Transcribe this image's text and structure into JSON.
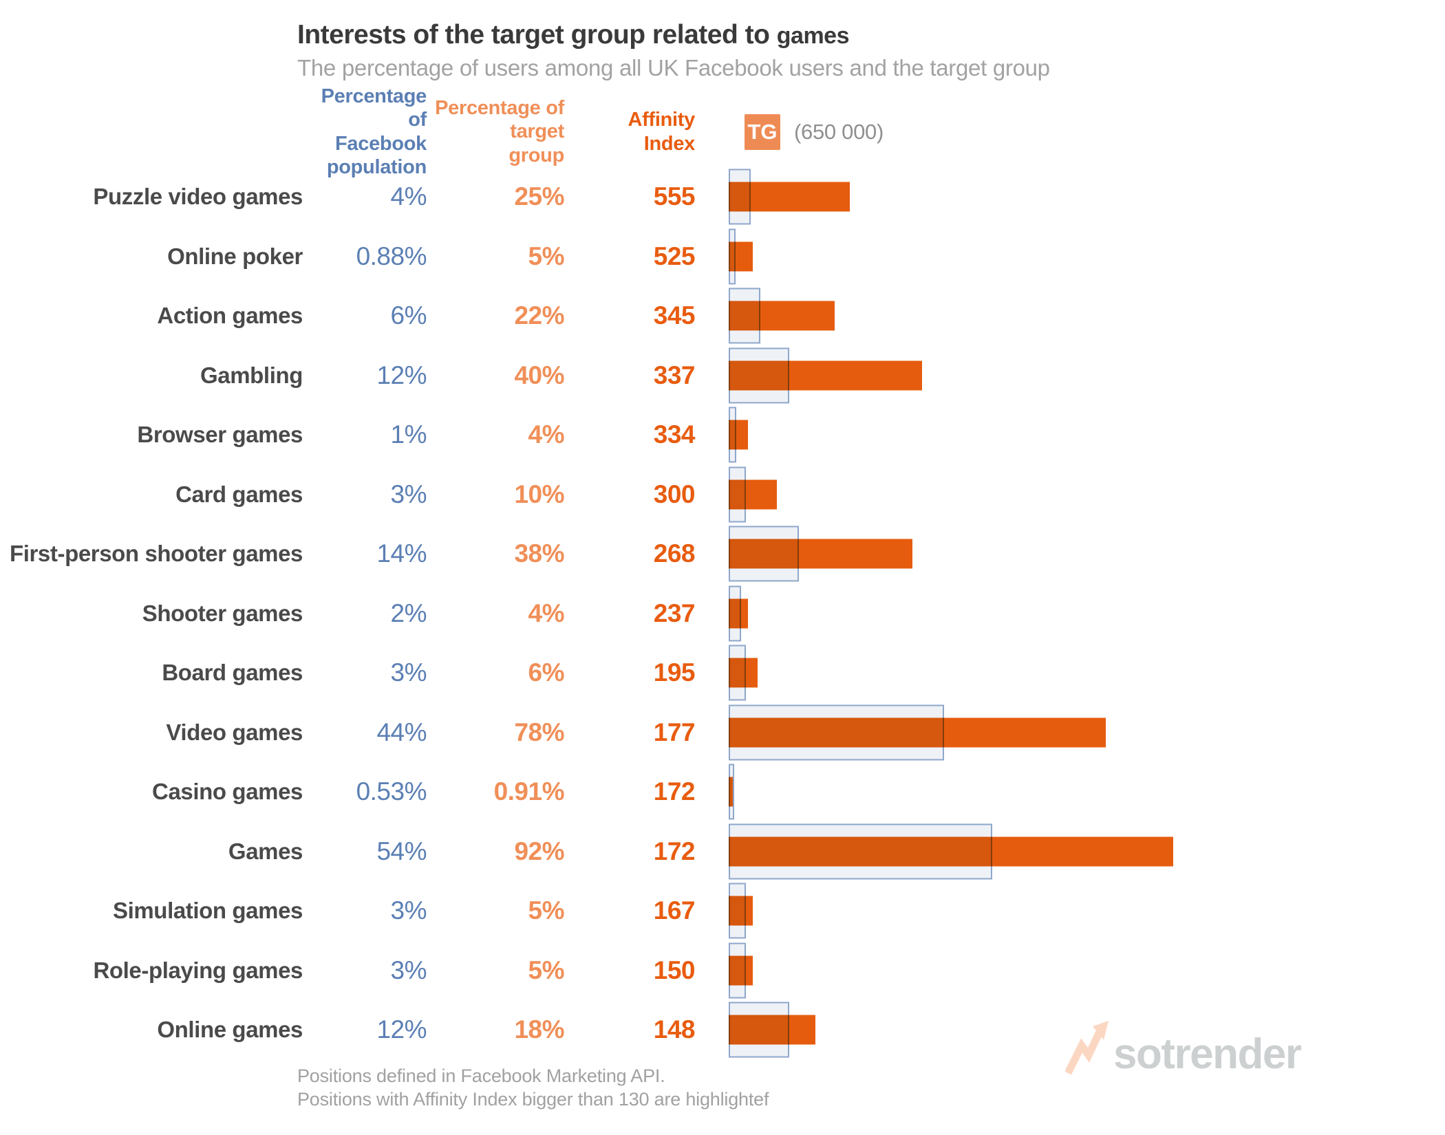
{
  "header": {
    "title_main": "Interests of the target group related to",
    "title_highlight": "games",
    "subtitle": "The percentage of users among all UK Facebook users and the target group"
  },
  "columns": {
    "fb_header": "Percentage of\nFacebook\npopulation",
    "tg_header": "Percentage of\ntarget\ngroup",
    "affinity_header": "Affinity\nIndex"
  },
  "legend": {
    "badge": "TG",
    "count": "(650 000)"
  },
  "rows": [
    {
      "label": "Puzzle video games",
      "fb": "4%",
      "tg": "25%",
      "affinity": "555",
      "fb_pct": 4,
      "tg_pct": 25
    },
    {
      "label": "Online poker",
      "fb": "0.88%",
      "tg": "5%",
      "affinity": "525",
      "fb_pct": 0.88,
      "tg_pct": 5
    },
    {
      "label": "Action games",
      "fb": "6%",
      "tg": "22%",
      "affinity": "345",
      "fb_pct": 6,
      "tg_pct": 22
    },
    {
      "label": "Gambling",
      "fb": "12%",
      "tg": "40%",
      "affinity": "337",
      "fb_pct": 12,
      "tg_pct": 40
    },
    {
      "label": "Browser games",
      "fb": "1%",
      "tg": "4%",
      "affinity": "334",
      "fb_pct": 1,
      "tg_pct": 4
    },
    {
      "label": "Card games",
      "fb": "3%",
      "tg": "10%",
      "affinity": "300",
      "fb_pct": 3,
      "tg_pct": 10
    },
    {
      "label": "First-person shooter games",
      "fb": "14%",
      "tg": "38%",
      "affinity": "268",
      "fb_pct": 14,
      "tg_pct": 38
    },
    {
      "label": "Shooter games",
      "fb": "2%",
      "tg": "4%",
      "affinity": "237",
      "fb_pct": 2,
      "tg_pct": 4
    },
    {
      "label": "Board games",
      "fb": "3%",
      "tg": "6%",
      "affinity": "195",
      "fb_pct": 3,
      "tg_pct": 6
    },
    {
      "label": "Video games",
      "fb": "44%",
      "tg": "78%",
      "affinity": "177",
      "fb_pct": 44,
      "tg_pct": 78
    },
    {
      "label": "Casino games",
      "fb": "0.53%",
      "tg": "0.91%",
      "affinity": "172",
      "fb_pct": 0.53,
      "tg_pct": 0.91
    },
    {
      "label": "Games",
      "fb": "54%",
      "tg": "92%",
      "affinity": "172",
      "fb_pct": 54,
      "tg_pct": 92
    },
    {
      "label": "Simulation games",
      "fb": "3%",
      "tg": "5%",
      "affinity": "167",
      "fb_pct": 3,
      "tg_pct": 5
    },
    {
      "label": "Role-playing games",
      "fb": "3%",
      "tg": "5%",
      "affinity": "150",
      "fb_pct": 3,
      "tg_pct": 5
    },
    {
      "label": "Online games",
      "fb": "12%",
      "tg": "18%",
      "affinity": "148",
      "fb_pct": 12,
      "tg_pct": 18
    }
  ],
  "footer": {
    "line1": "Positions defined in Facebook Marketing API.",
    "line2": "Positions with Affinity Index bigger than 130 are highlightef"
  },
  "logo": {
    "text": "sotrender"
  },
  "colors": {
    "target_bar_orange": "#e65c0e",
    "affinity_text_orange": "#e85c0f",
    "target_text_orange": "#f08f58",
    "facebook_blue": "#5b7fb4",
    "fb_bar_fill": "#eef1f6",
    "fb_bar_border": "#8fa7cb",
    "tg_badge_orange": "#ee8b55",
    "label_gray": "#4a4a4a",
    "subtitle_gray": "#a2a2a2",
    "logo_gray": "#cdd0d1",
    "logo_arrow_peach": "#fbd7c2"
  },
  "chart_data": {
    "type": "bar",
    "orientation": "horizontal",
    "title": "Interests of the target group related to games",
    "subtitle": "The percentage of users among all UK Facebook users and the target group",
    "categories": [
      "Puzzle video games",
      "Online poker",
      "Action games",
      "Gambling",
      "Browser games",
      "Card games",
      "First-person shooter games",
      "Shooter games",
      "Board games",
      "Video games",
      "Casino games",
      "Games",
      "Simulation games",
      "Role-playing games",
      "Online games"
    ],
    "series": [
      {
        "name": "Percentage of Facebook population",
        "unit": "%",
        "values": [
          4,
          0.88,
          6,
          12,
          1,
          3,
          14,
          2,
          3,
          44,
          0.53,
          54,
          3,
          3,
          12
        ]
      },
      {
        "name": "Percentage of target group",
        "unit": "%",
        "values": [
          25,
          5,
          22,
          40,
          4,
          10,
          38,
          4,
          6,
          78,
          0.91,
          92,
          5,
          5,
          18
        ]
      },
      {
        "name": "Affinity Index",
        "unit": "",
        "values": [
          555,
          525,
          345,
          337,
          334,
          300,
          268,
          237,
          195,
          177,
          172,
          172,
          167,
          150,
          148
        ]
      }
    ],
    "legend": {
      "entries": [
        "TG (650 000)"
      ],
      "position": "top"
    },
    "xlim": [
      0,
      100
    ],
    "grid": false,
    "notes": [
      "Positions defined in Facebook Marketing API.",
      "Positions with Affinity Index bigger than 130 are highlightef"
    ]
  }
}
